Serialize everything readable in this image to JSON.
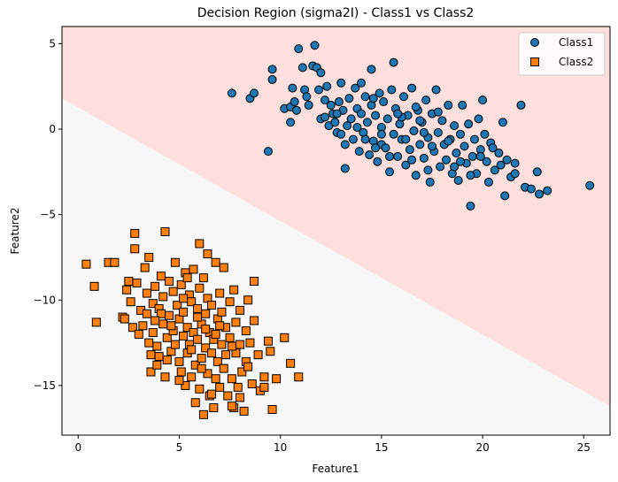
{
  "chart_data": {
    "type": "scatter",
    "title": "Decision Region (sigma2I) - Class1 vs Class2",
    "xlabel": "Feature1",
    "ylabel": "Feature2",
    "xlim": [
      -0.8,
      26.3
    ],
    "ylim": [
      -17.9,
      6.0
    ],
    "x_ticks": [
      0,
      5,
      10,
      15,
      20,
      25
    ],
    "y_ticks": [
      -15,
      -10,
      -5,
      0,
      5
    ],
    "grid": false,
    "legend_position": "top-right",
    "decision_boundary": {
      "description_points": [
        [
          -0.8,
          1.8
        ],
        [
          26.3,
          -16.2
        ]
      ],
      "class1_region_color": "#fde0dd",
      "class2_region_color": "#f7f7f7"
    },
    "series": [
      {
        "name": "Class1",
        "marker": "circle",
        "color": "#1f77b4",
        "points": [
          [
            7.6,
            2.1
          ],
          [
            8.5,
            1.8
          ],
          [
            8.7,
            2.1
          ],
          [
            9.4,
            -1.3
          ],
          [
            9.6,
            3.5
          ],
          [
            9.6,
            2.9
          ],
          [
            10.2,
            1.2
          ],
          [
            10.5,
            1.3
          ],
          [
            10.5,
            0.4
          ],
          [
            10.6,
            2.4
          ],
          [
            10.7,
            1.6
          ],
          [
            10.8,
            1.1
          ],
          [
            10.9,
            4.7
          ],
          [
            11.1,
            3.6
          ],
          [
            11.2,
            2.3
          ],
          [
            11.3,
            1.9
          ],
          [
            11.4,
            1.4
          ],
          [
            11.6,
            3.7
          ],
          [
            11.7,
            4.9
          ],
          [
            11.8,
            3.6
          ],
          [
            11.9,
            2.3
          ],
          [
            12.0,
            3.3
          ],
          [
            12.0,
            0.6
          ],
          [
            12.2,
            0.7
          ],
          [
            12.3,
            2.5
          ],
          [
            12.4,
            0.2
          ],
          [
            12.5,
            1.4
          ],
          [
            12.6,
            0.9
          ],
          [
            12.7,
            0.4
          ],
          [
            12.8,
            -0.2
          ],
          [
            12.9,
            1.6
          ],
          [
            13.0,
            2.7
          ],
          [
            13.1,
            1.1
          ],
          [
            13.2,
            -0.9
          ],
          [
            13.2,
            -2.3
          ],
          [
            13.3,
            0.2
          ],
          [
            13.4,
            1.8
          ],
          [
            13.5,
            0.6
          ],
          [
            13.6,
            -0.6
          ],
          [
            13.7,
            2.4
          ],
          [
            13.8,
            1.2
          ],
          [
            13.9,
            -1.3
          ],
          [
            14.0,
            0.9
          ],
          [
            14.0,
            2.7
          ],
          [
            14.1,
            -0.2
          ],
          [
            14.2,
            1.9
          ],
          [
            14.3,
            0.4
          ],
          [
            14.4,
            -1.5
          ],
          [
            14.5,
            3.5
          ],
          [
            14.5,
            1.4
          ],
          [
            14.6,
            -0.7
          ],
          [
            14.7,
            0.8
          ],
          [
            14.8,
            -1.9
          ],
          [
            14.9,
            2.1
          ],
          [
            15.0,
            0.1
          ],
          [
            15.0,
            -0.9
          ],
          [
            15.1,
            1.6
          ],
          [
            15.2,
            -1.1
          ],
          [
            15.3,
            0.6
          ],
          [
            15.4,
            -2.5
          ],
          [
            15.5,
            2.3
          ],
          [
            15.6,
            -0.3
          ],
          [
            15.6,
            3.9
          ],
          [
            15.7,
            1.2
          ],
          [
            15.8,
            -1.6
          ],
          [
            15.9,
            0.3
          ],
          [
            16.0,
            -0.6
          ],
          [
            16.1,
            1.9
          ],
          [
            16.2,
            -2.1
          ],
          [
            16.3,
            0.8
          ],
          [
            16.4,
            -1.2
          ],
          [
            16.5,
            2.4
          ],
          [
            16.6,
            -0.1
          ],
          [
            16.7,
            -2.7
          ],
          [
            16.8,
            1.1
          ],
          [
            16.9,
            -0.9
          ],
          [
            17.0,
            0.4
          ],
          [
            17.1,
            -1.7
          ],
          [
            17.2,
            1.7
          ],
          [
            17.3,
            -0.5
          ],
          [
            17.4,
            -3.1
          ],
          [
            17.5,
            0.9
          ],
          [
            17.6,
            -1.3
          ],
          [
            17.7,
            2.3
          ],
          [
            17.8,
            -0.2
          ],
          [
            17.9,
            -2.2
          ],
          [
            18.0,
            0.5
          ],
          [
            18.1,
            -0.9
          ],
          [
            18.2,
            -1.8
          ],
          [
            18.3,
            1.4
          ],
          [
            18.4,
            -0.6
          ],
          [
            18.5,
            -2.6
          ],
          [
            18.6,
            0.2
          ],
          [
            18.7,
            -1.4
          ],
          [
            18.8,
            -3.0
          ],
          [
            18.9,
            -0.3
          ],
          [
            19.0,
            1.4
          ],
          [
            19.1,
            -1.0
          ],
          [
            19.2,
            -2.0
          ],
          [
            19.3,
            0.3
          ],
          [
            19.4,
            -4.5
          ],
          [
            19.5,
            -1.6
          ],
          [
            19.6,
            -0.6
          ],
          [
            19.7,
            -2.6
          ],
          [
            19.8,
            0.6
          ],
          [
            19.9,
            -1.2
          ],
          [
            20.0,
            1.7
          ],
          [
            20.1,
            -0.3
          ],
          [
            20.2,
            -1.9
          ],
          [
            20.3,
            -3.1
          ],
          [
            20.4,
            -0.8
          ],
          [
            20.6,
            -2.4
          ],
          [
            20.8,
            -1.4
          ],
          [
            21.0,
            0.4
          ],
          [
            21.1,
            -3.9
          ],
          [
            21.2,
            -1.8
          ],
          [
            21.4,
            -2.8
          ],
          [
            21.6,
            -2.0
          ],
          [
            21.9,
            1.4
          ],
          [
            22.1,
            -3.4
          ],
          [
            22.4,
            -3.5
          ],
          [
            22.7,
            -2.5
          ],
          [
            22.8,
            -3.8
          ],
          [
            23.2,
            -3.6
          ],
          [
            25.3,
            -3.3
          ],
          [
            15.0,
            -0.3
          ],
          [
            16.5,
            -1.8
          ],
          [
            17.3,
            -2.4
          ],
          [
            14.2,
            -0.6
          ],
          [
            13.0,
            -0.3
          ],
          [
            18.9,
            -1.9
          ],
          [
            20.5,
            -1.1
          ],
          [
            17.8,
            1.0
          ],
          [
            16.0,
            0.7
          ],
          [
            14.6,
            1.8
          ],
          [
            12.2,
            1.7
          ],
          [
            19.4,
            -2.7
          ],
          [
            21.6,
            -2.6
          ],
          [
            15.4,
            -1.6
          ],
          [
            16.9,
            0.5
          ],
          [
            18.3,
            -0.7
          ],
          [
            13.8,
            0.1
          ],
          [
            17.1,
            -0.2
          ],
          [
            19.9,
            -1.6
          ],
          [
            16.2,
            -0.6
          ],
          [
            14.7,
            -1.1
          ],
          [
            12.8,
            0.9
          ],
          [
            18.6,
            -2.2
          ],
          [
            20.9,
            -2.1
          ],
          [
            15.8,
            0.9
          ],
          [
            17.5,
            -1.0
          ],
          [
            16.7,
            1.3
          ]
        ]
      },
      {
        "name": "Class2",
        "marker": "square",
        "color": "#ff7f0e",
        "points": [
          [
            0.4,
            -7.9
          ],
          [
            0.8,
            -9.2
          ],
          [
            0.9,
            -11.3
          ],
          [
            1.5,
            -7.8
          ],
          [
            1.8,
            -7.8
          ],
          [
            2.2,
            -11.0
          ],
          [
            2.4,
            -9.4
          ],
          [
            2.5,
            -8.9
          ],
          [
            2.6,
            -10.1
          ],
          [
            2.7,
            -11.6
          ],
          [
            2.8,
            -6.1
          ],
          [
            2.8,
            -7.0
          ],
          [
            2.9,
            -9.0
          ],
          [
            3.0,
            -12.0
          ],
          [
            3.1,
            -10.6
          ],
          [
            3.2,
            -11.5
          ],
          [
            3.3,
            -8.1
          ],
          [
            3.4,
            -9.6
          ],
          [
            3.5,
            -7.5
          ],
          [
            3.5,
            -12.5
          ],
          [
            3.6,
            -13.2
          ],
          [
            3.6,
            -14.2
          ],
          [
            3.7,
            -10.2
          ],
          [
            3.7,
            -11.9
          ],
          [
            3.8,
            -9.2
          ],
          [
            3.9,
            -12.7
          ],
          [
            4.0,
            -10.5
          ],
          [
            4.0,
            -13.3
          ],
          [
            4.1,
            -8.6
          ],
          [
            4.2,
            -11.4
          ],
          [
            4.2,
            -9.8
          ],
          [
            4.3,
            -6.0
          ],
          [
            4.3,
            -14.5
          ],
          [
            4.4,
            -12.2
          ],
          [
            4.5,
            -10.9
          ],
          [
            4.5,
            -8.9
          ],
          [
            4.6,
            -13.0
          ],
          [
            4.7,
            -11.8
          ],
          [
            4.7,
            -9.5
          ],
          [
            4.8,
            -12.6
          ],
          [
            4.8,
            -7.8
          ],
          [
            4.9,
            -10.3
          ],
          [
            5.0,
            -13.6
          ],
          [
            5.0,
            -11.1
          ],
          [
            5.1,
            -9.1
          ],
          [
            5.1,
            -14.2
          ],
          [
            5.2,
            -12.1
          ],
          [
            5.2,
            -10.7
          ],
          [
            5.3,
            -15.0
          ],
          [
            5.3,
            -8.4
          ],
          [
            5.4,
            -11.6
          ],
          [
            5.4,
            -13.1
          ],
          [
            5.5,
            -9.7
          ],
          [
            5.5,
            -12.6
          ],
          [
            5.6,
            -10.1
          ],
          [
            5.6,
            -14.5
          ],
          [
            5.7,
            -8.2
          ],
          [
            5.7,
            -11.9
          ],
          [
            5.8,
            -13.8
          ],
          [
            5.8,
            -16.0
          ],
          [
            5.9,
            -10.5
          ],
          [
            5.9,
            -12.3
          ],
          [
            6.0,
            -9.3
          ],
          [
            6.0,
            -15.2
          ],
          [
            6.1,
            -11.4
          ],
          [
            6.1,
            -13.4
          ],
          [
            6.2,
            -8.7
          ],
          [
            6.2,
            -16.7
          ],
          [
            6.3,
            -10.8
          ],
          [
            6.3,
            -12.8
          ],
          [
            6.4,
            -14.3
          ],
          [
            6.4,
            -9.9
          ],
          [
            6.5,
            -11.9
          ],
          [
            6.5,
            -15.6
          ],
          [
            6.6,
            -13.1
          ],
          [
            6.6,
            -10.3
          ],
          [
            6.7,
            -12.3
          ],
          [
            6.7,
            -16.3
          ],
          [
            6.8,
            -7.8
          ],
          [
            6.8,
            -14.6
          ],
          [
            6.9,
            -11.1
          ],
          [
            6.9,
            -13.6
          ],
          [
            7.0,
            -9.6
          ],
          [
            7.0,
            -15.1
          ],
          [
            7.1,
            -12.6
          ],
          [
            7.1,
            -10.7
          ],
          [
            7.2,
            -14.0
          ],
          [
            7.3,
            -11.6
          ],
          [
            7.3,
            -13.2
          ],
          [
            7.4,
            -15.6
          ],
          [
            7.5,
            -10.1
          ],
          [
            7.5,
            -12.2
          ],
          [
            7.6,
            -14.6
          ],
          [
            7.7,
            -9.4
          ],
          [
            7.7,
            -16.3
          ],
          [
            7.8,
            -11.3
          ],
          [
            7.8,
            -13.1
          ],
          [
            7.9,
            -15.1
          ],
          [
            8.0,
            -10.6
          ],
          [
            8.0,
            -12.6
          ],
          [
            8.1,
            -14.2
          ],
          [
            8.2,
            -16.5
          ],
          [
            8.3,
            -11.8
          ],
          [
            8.3,
            -13.6
          ],
          [
            8.4,
            -10.0
          ],
          [
            8.5,
            -12.5
          ],
          [
            8.6,
            -14.9
          ],
          [
            8.7,
            -11.2
          ],
          [
            8.7,
            -8.9
          ],
          [
            8.9,
            -13.2
          ],
          [
            9.0,
            -15.3
          ],
          [
            9.2,
            -14.5
          ],
          [
            9.4,
            -12.4
          ],
          [
            9.6,
            -16.4
          ],
          [
            9.8,
            -14.6
          ],
          [
            10.2,
            -12.2
          ],
          [
            10.5,
            -13.7
          ],
          [
            10.9,
            -14.5
          ],
          [
            7.6,
            -16.2
          ],
          [
            9.5,
            -13.0
          ],
          [
            6.0,
            -6.7
          ],
          [
            6.4,
            -7.3
          ],
          [
            5.4,
            -8.7
          ],
          [
            4.1,
            -10.8
          ],
          [
            3.9,
            -13.8
          ],
          [
            5.0,
            -14.7
          ],
          [
            6.6,
            -15.5
          ],
          [
            8.0,
            -15.7
          ],
          [
            9.2,
            -15.1
          ],
          [
            7.2,
            -8.1
          ],
          [
            2.3,
            -11.1
          ],
          [
            3.4,
            -10.8
          ],
          [
            4.6,
            -11.5
          ],
          [
            5.9,
            -11.0
          ],
          [
            6.8,
            -12.0
          ],
          [
            7.6,
            -12.7
          ],
          [
            4.4,
            -13.5
          ],
          [
            5.6,
            -12.9
          ],
          [
            6.3,
            -11.7
          ],
          [
            7.0,
            -11.5
          ],
          [
            5.2,
            -9.9
          ],
          [
            3.8,
            -11.2
          ],
          [
            8.4,
            -13.9
          ],
          [
            6.1,
            -14.0
          ]
        ]
      }
    ]
  }
}
